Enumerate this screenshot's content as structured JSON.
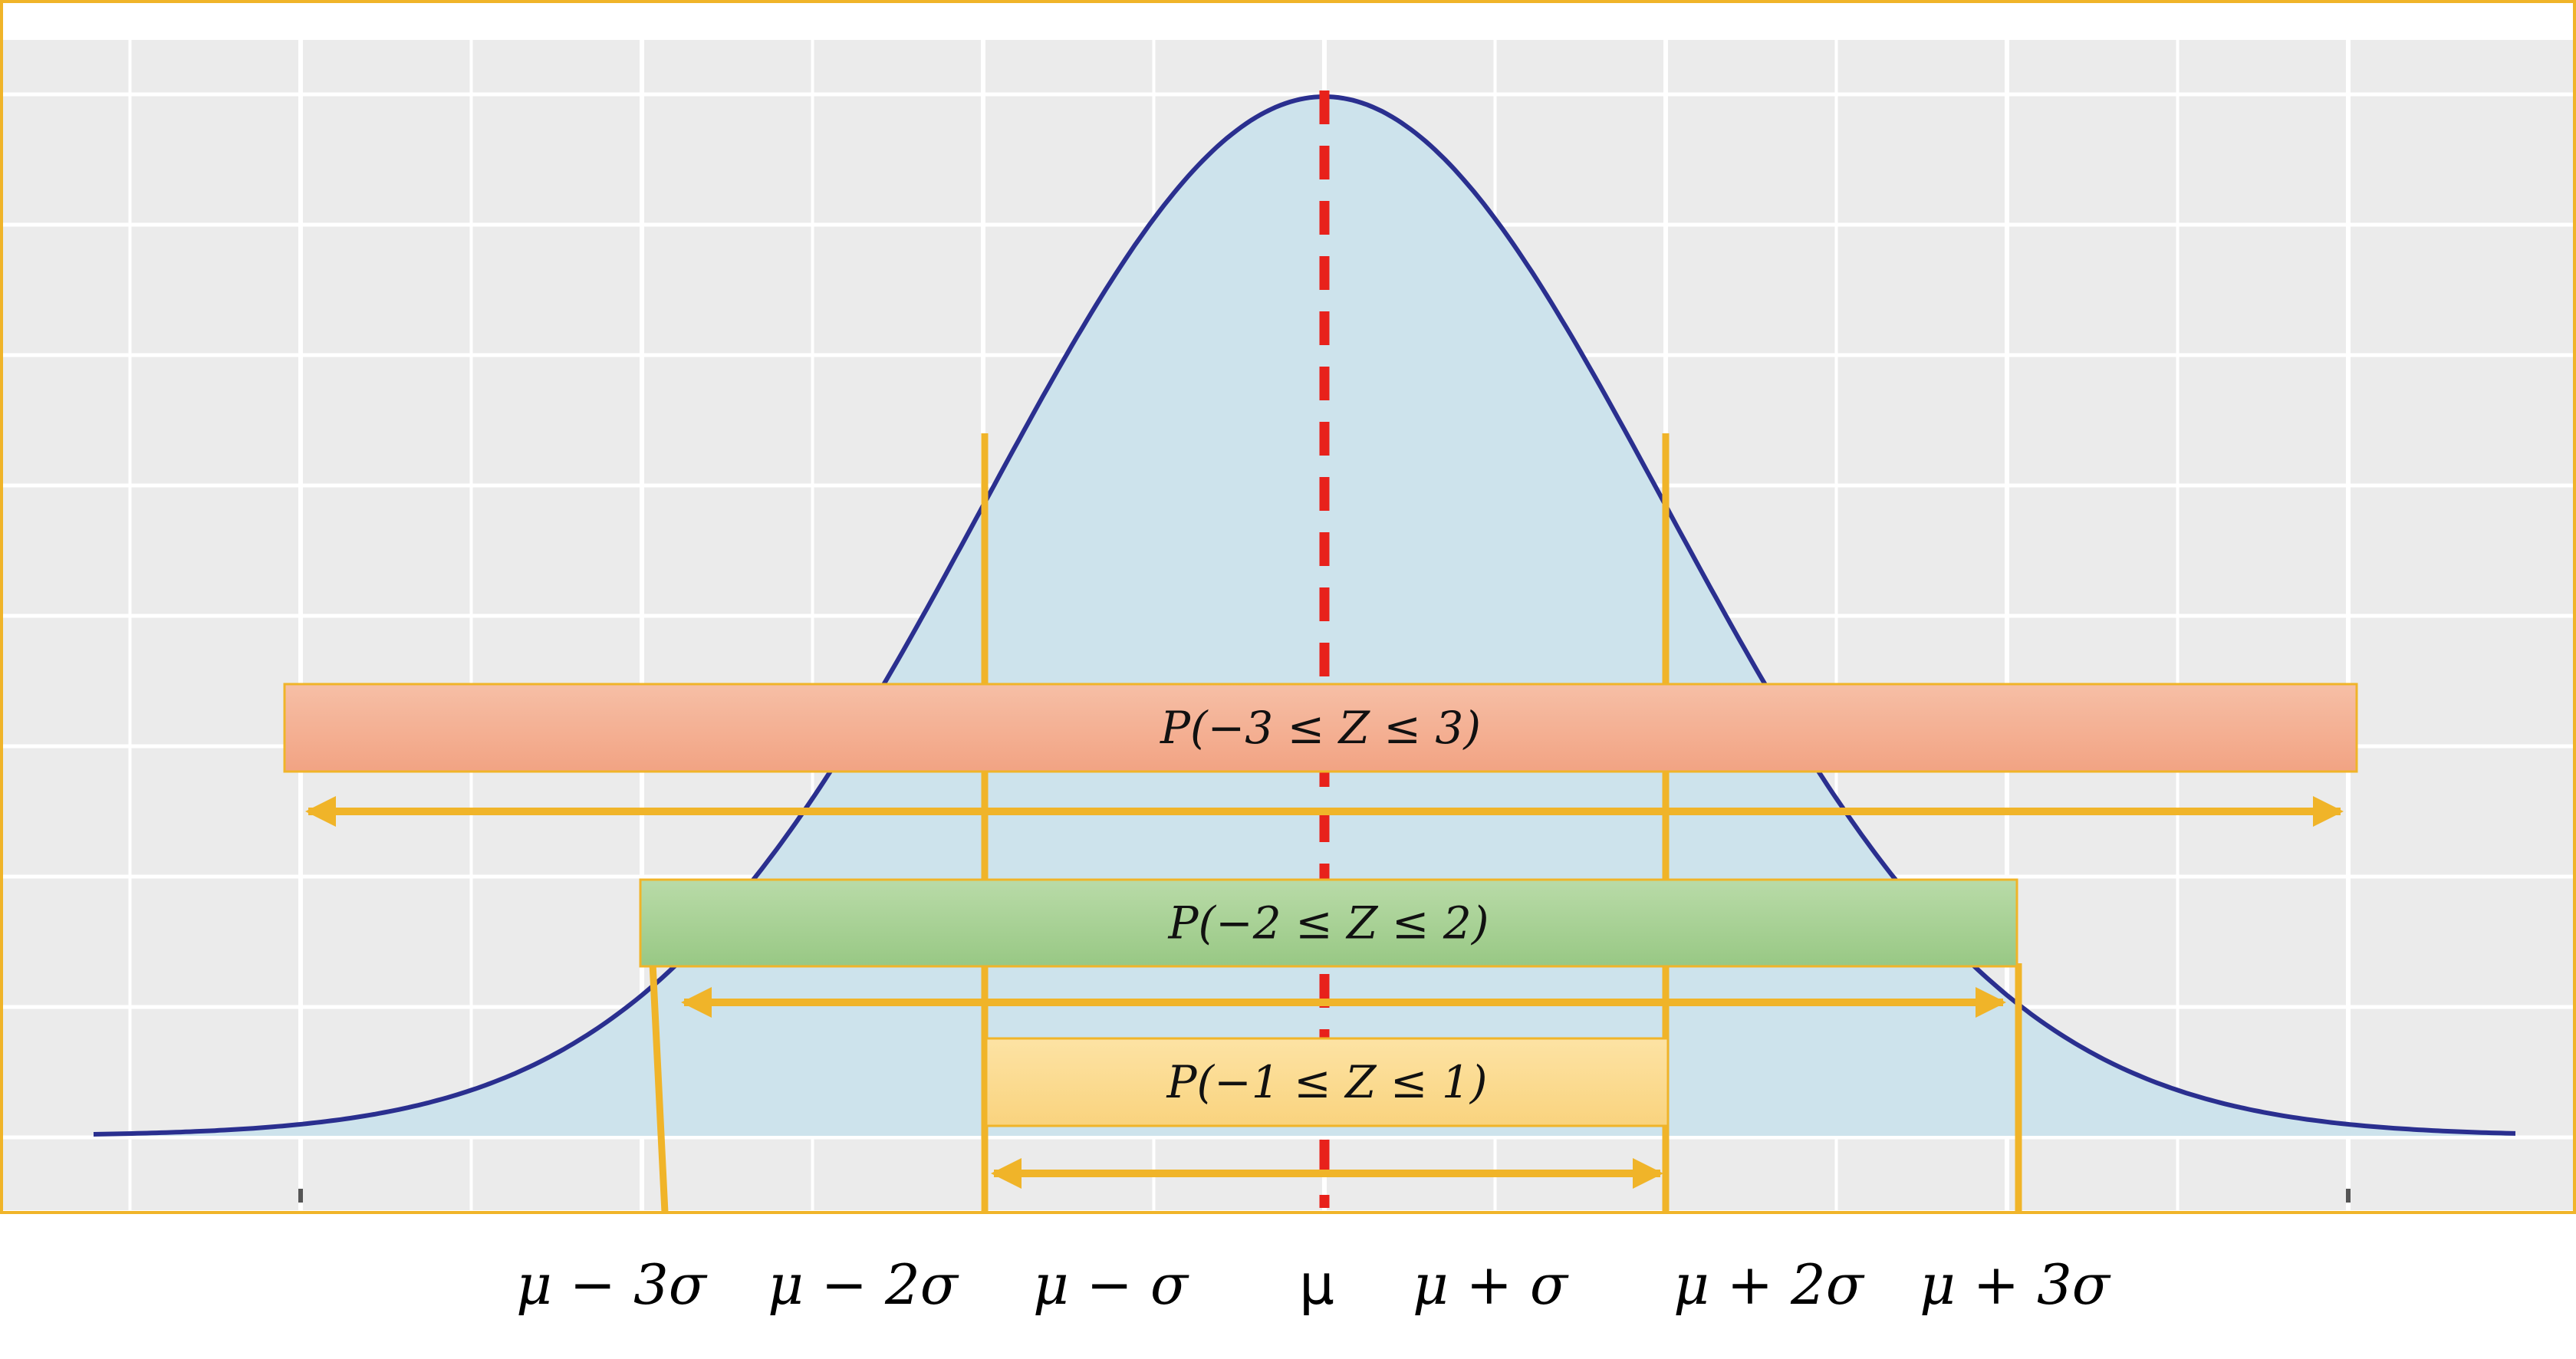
{
  "chart_data": {
    "type": "area",
    "title": "",
    "xlabel": "",
    "ylabel": "",
    "distribution": "normal",
    "xlim": [
      -3.9,
      3.15
    ],
    "grid": true,
    "x_ticks": [
      {
        "z": -3,
        "label": "μ − 3σ"
      },
      {
        "z": -2,
        "label": "μ − 2σ"
      },
      {
        "z": -1,
        "label": "μ − σ"
      },
      {
        "z": 0,
        "label": "μ"
      },
      {
        "z": 1,
        "label": "μ + σ"
      },
      {
        "z": 2,
        "label": "μ + 2σ"
      },
      {
        "z": 3,
        "label": "μ + 3σ"
      }
    ],
    "mean_line": {
      "z": 0,
      "style": "dashed"
    },
    "intervals": [
      {
        "label": "P(−3 ≤ Z ≤ 3)",
        "from": -3,
        "to": 3,
        "fill": "#f4a98a"
      },
      {
        "label": "P(−2 ≤ Z ≤ 2)",
        "from": -2,
        "to": 2,
        "fill": "#a6cf93"
      },
      {
        "label": "P(−1 ≤ Z ≤ 1)",
        "from": -1,
        "to": 1,
        "fill": "#fbd98a"
      }
    ],
    "colors": {
      "curve": "#2a2f8f",
      "area": "#cde3ec",
      "panel": "#ebebeb",
      "mean_line": "#e8211b",
      "accent": "#f0b429"
    }
  }
}
